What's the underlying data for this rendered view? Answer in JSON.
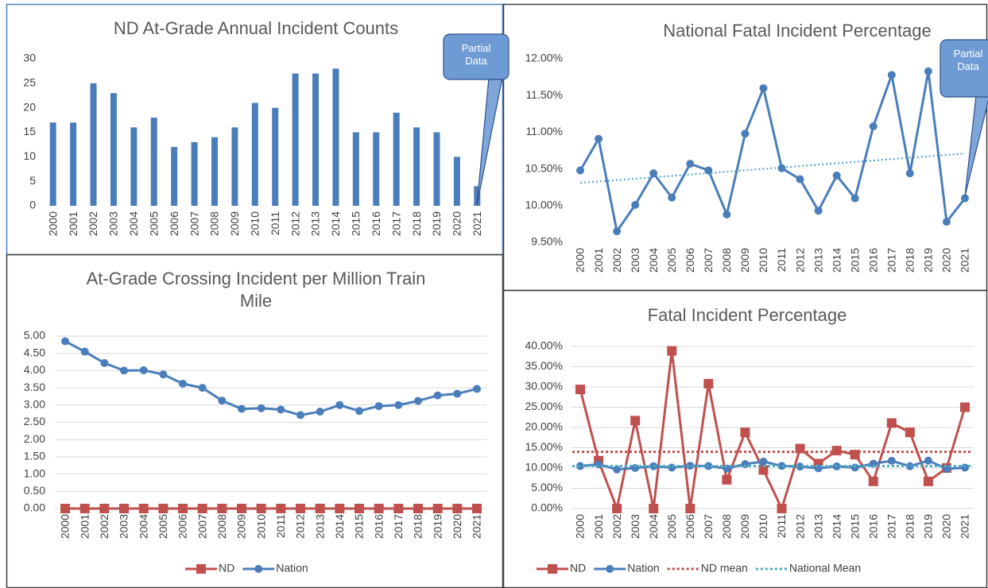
{
  "chart_data": [
    {
      "type": "bar",
      "title": "ND At-Grade Annual Incident Counts",
      "categories": [
        "2000",
        "2001",
        "2002",
        "2003",
        "2004",
        "2005",
        "2006",
        "2007",
        "2008",
        "2009",
        "2010",
        "2011",
        "2012",
        "2013",
        "2014",
        "2015",
        "2016",
        "2017",
        "2018",
        "2019",
        "2020",
        "2021"
      ],
      "values": [
        17,
        17,
        25,
        23,
        16,
        18,
        12,
        13,
        14,
        16,
        21,
        20,
        27,
        27,
        28,
        15,
        15,
        19,
        16,
        15,
        10,
        4
      ],
      "color": "#4a7ebb",
      "ylim": [
        0,
        30
      ],
      "yticks": [
        0,
        5,
        10,
        15,
        20,
        25,
        30
      ],
      "grid": false,
      "annotation": "Partial Data"
    },
    {
      "type": "line",
      "title": "National Fatal Incident Percentage",
      "categories": [
        "2000",
        "2001",
        "2002",
        "2003",
        "2004",
        "2005",
        "2006",
        "2007",
        "2008",
        "2009",
        "2010",
        "2011",
        "2012",
        "2013",
        "2014",
        "2015",
        "2016",
        "2017",
        "2018",
        "2019",
        "2020",
        "2021"
      ],
      "series": [
        {
          "name": "Nation",
          "color": "#4a7ebb",
          "marker": "circle",
          "values": [
            10.48,
            10.91,
            9.65,
            10.01,
            10.44,
            10.11,
            10.57,
            10.48,
            9.88,
            10.98,
            11.6,
            10.51,
            10.36,
            9.93,
            10.41,
            10.1,
            11.08,
            11.78,
            10.44,
            11.83,
            9.78,
            10.1
          ]
        }
      ],
      "trendline": {
        "start": 10.31,
        "end": 10.71,
        "color": "#4f9fd0"
      },
      "ylim": [
        9.5,
        12
      ],
      "yticks": [
        {
          "value": 9.5,
          "label": "9.50%"
        },
        {
          "value": 10,
          "label": "10.00%"
        },
        {
          "value": 10.5,
          "label": "10.50%"
        },
        {
          "value": 11,
          "label": "11.00%"
        },
        {
          "value": 11.5,
          "label": "11.50%"
        },
        {
          "value": 12,
          "label": "12.00%"
        }
      ],
      "grid": false,
      "annotation": "Partial Data"
    },
    {
      "type": "line",
      "title": "At-Grade Crossing Incident per Million Train Mile",
      "categories": [
        "2000",
        "2001",
        "2002",
        "2003",
        "2004",
        "2005",
        "2006",
        "2007",
        "2008",
        "2009",
        "2010",
        "2011",
        "2012",
        "2013",
        "2014",
        "2015",
        "2016",
        "2017",
        "2018",
        "2019",
        "2020",
        "2021"
      ],
      "series": [
        {
          "name": "ND",
          "color": "#c0504d",
          "marker": "square",
          "values": [
            0,
            0,
            0,
            0,
            0,
            0,
            0,
            0,
            0,
            0,
            0,
            0,
            0,
            0,
            0,
            0,
            0,
            0,
            0,
            0,
            0,
            0
          ]
        },
        {
          "name": "Nation",
          "color": "#4a7ebb",
          "marker": "circle",
          "values": [
            4.85,
            4.55,
            4.22,
            4.0,
            4.01,
            3.89,
            3.62,
            3.5,
            3.13,
            2.89,
            2.91,
            2.87,
            2.71,
            2.81,
            3.0,
            2.83,
            2.97,
            3.0,
            3.12,
            3.28,
            3.33,
            3.47
          ]
        }
      ],
      "ylim": [
        0,
        5
      ],
      "yticks": [
        {
          "value": 0,
          "label": "0.00"
        },
        {
          "value": 0.5,
          "label": "0.50"
        },
        {
          "value": 1,
          "label": "1.00"
        },
        {
          "value": 1.5,
          "label": "1.50"
        },
        {
          "value": 2,
          "label": "2.00"
        },
        {
          "value": 2.5,
          "label": "2.50"
        },
        {
          "value": 3,
          "label": "3.00"
        },
        {
          "value": 3.5,
          "label": "3.50"
        },
        {
          "value": 4,
          "label": "4.00"
        },
        {
          "value": 4.5,
          "label": "4.50"
        },
        {
          "value": 5,
          "label": "5.00"
        }
      ],
      "grid": true,
      "legend": "bottom"
    },
    {
      "type": "line",
      "title": "Fatal Incident Percentage",
      "categories": [
        "2000",
        "2001",
        "2002",
        "2003",
        "2004",
        "2005",
        "2006",
        "2007",
        "2008",
        "2009",
        "2010",
        "2011",
        "2012",
        "2013",
        "2014",
        "2015",
        "2016",
        "2017",
        "2018",
        "2019",
        "2020",
        "2021"
      ],
      "series": [
        {
          "name": "ND",
          "color": "#c0504d",
          "marker": "square",
          "values": [
            29.4,
            11.8,
            0,
            21.7,
            0,
            38.9,
            0,
            30.8,
            7.1,
            18.8,
            9.5,
            0,
            14.8,
            11.1,
            14.3,
            13.3,
            6.7,
            21.1,
            18.8,
            6.7,
            10.0,
            25.0
          ]
        },
        {
          "name": "Nation",
          "color": "#4a7ebb",
          "marker": "circle",
          "values": [
            10.48,
            10.91,
            9.65,
            10.01,
            10.44,
            10.11,
            10.57,
            10.48,
            9.88,
            10.98,
            11.6,
            10.51,
            10.36,
            9.93,
            10.41,
            10.1,
            11.08,
            11.78,
            10.44,
            11.83,
            9.78,
            10.1
          ]
        },
        {
          "name": "ND mean",
          "color": "#c0504d",
          "style": "dotted",
          "value": 14.0
        },
        {
          "name": "National Mean",
          "color": "#4bacc6",
          "style": "dotted",
          "value": 10.5
        }
      ],
      "ylim": [
        0,
        40
      ],
      "yticks": [
        {
          "value": 0,
          "label": "0.00%"
        },
        {
          "value": 5,
          "label": "5.00%"
        },
        {
          "value": 10,
          "label": "10.00%"
        },
        {
          "value": 15,
          "label": "15.00%"
        },
        {
          "value": 20,
          "label": "20.00%"
        },
        {
          "value": 25,
          "label": "25.00%"
        },
        {
          "value": 30,
          "label": "30.00%"
        },
        {
          "value": 35,
          "label": "35.00%"
        },
        {
          "value": 40,
          "label": "40.00%"
        }
      ],
      "grid": true,
      "legend": "bottom"
    }
  ]
}
